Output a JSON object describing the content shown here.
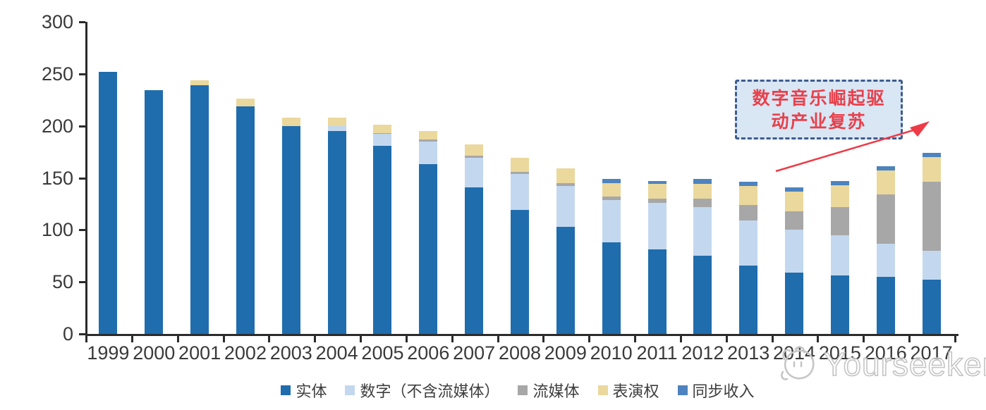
{
  "chart_data": {
    "type": "bar",
    "subtype": "stacked-vertical",
    "title": "",
    "xlabel": "",
    "ylabel": "",
    "x": [
      "1999",
      "2000",
      "2001",
      "2002",
      "2003",
      "2004",
      "2005",
      "2006",
      "2007",
      "2008",
      "2009",
      "2010",
      "2011",
      "2012",
      "2013",
      "2014",
      "2015",
      "2016",
      "2017"
    ],
    "y_ticks": [
      0,
      50,
      100,
      150,
      200,
      250,
      300
    ],
    "ylim": [
      0,
      300
    ],
    "grid": false,
    "legend_position": "bottom",
    "series": [
      {
        "name": "实体",
        "color": "#1F6DAD",
        "values": [
          252,
          234,
          239,
          219,
          200,
          195,
          181,
          163,
          141,
          119,
          103,
          88,
          81,
          75,
          66,
          59,
          56,
          55,
          52
        ]
      },
      {
        "name": "数字（不含流媒体）",
        "color": "#C3D8EF",
        "values": [
          0,
          0,
          0,
          0,
          0,
          5,
          11,
          22,
          28,
          35,
          39,
          41,
          45,
          47,
          43,
          41,
          39,
          32,
          28
        ]
      },
      {
        "name": "流媒体",
        "color": "#A7A7A7",
        "values": [
          0,
          0,
          0,
          0,
          0,
          0,
          1,
          2,
          2,
          2,
          3,
          3,
          4,
          8,
          15,
          18,
          27,
          47,
          66
        ]
      },
      {
        "name": "表演权",
        "color": "#EBD89C",
        "values": [
          0,
          0,
          5,
          7,
          8,
          8,
          8,
          8,
          11,
          13,
          14,
          13,
          14,
          14,
          18,
          19,
          21,
          23,
          24
        ]
      },
      {
        "name": "同步收入",
        "color": "#4D83BE",
        "values": [
          0,
          0,
          0,
          0,
          0,
          0,
          0,
          0,
          0,
          0,
          0,
          4,
          3,
          5,
          4,
          4,
          4,
          4,
          4
        ]
      }
    ]
  },
  "annotation": {
    "line1": "数字音乐崛起驱",
    "line2": "动产业复苏",
    "text_color": "#E8404B",
    "border_color": "#3D5C8F",
    "fill_color": "#D9E6F4",
    "arrow_color": "#ED3B47"
  },
  "watermark": {
    "text": "Yourseeker",
    "logo_icon": "cat-mascot-icon",
    "color": "#C4C4C4"
  }
}
